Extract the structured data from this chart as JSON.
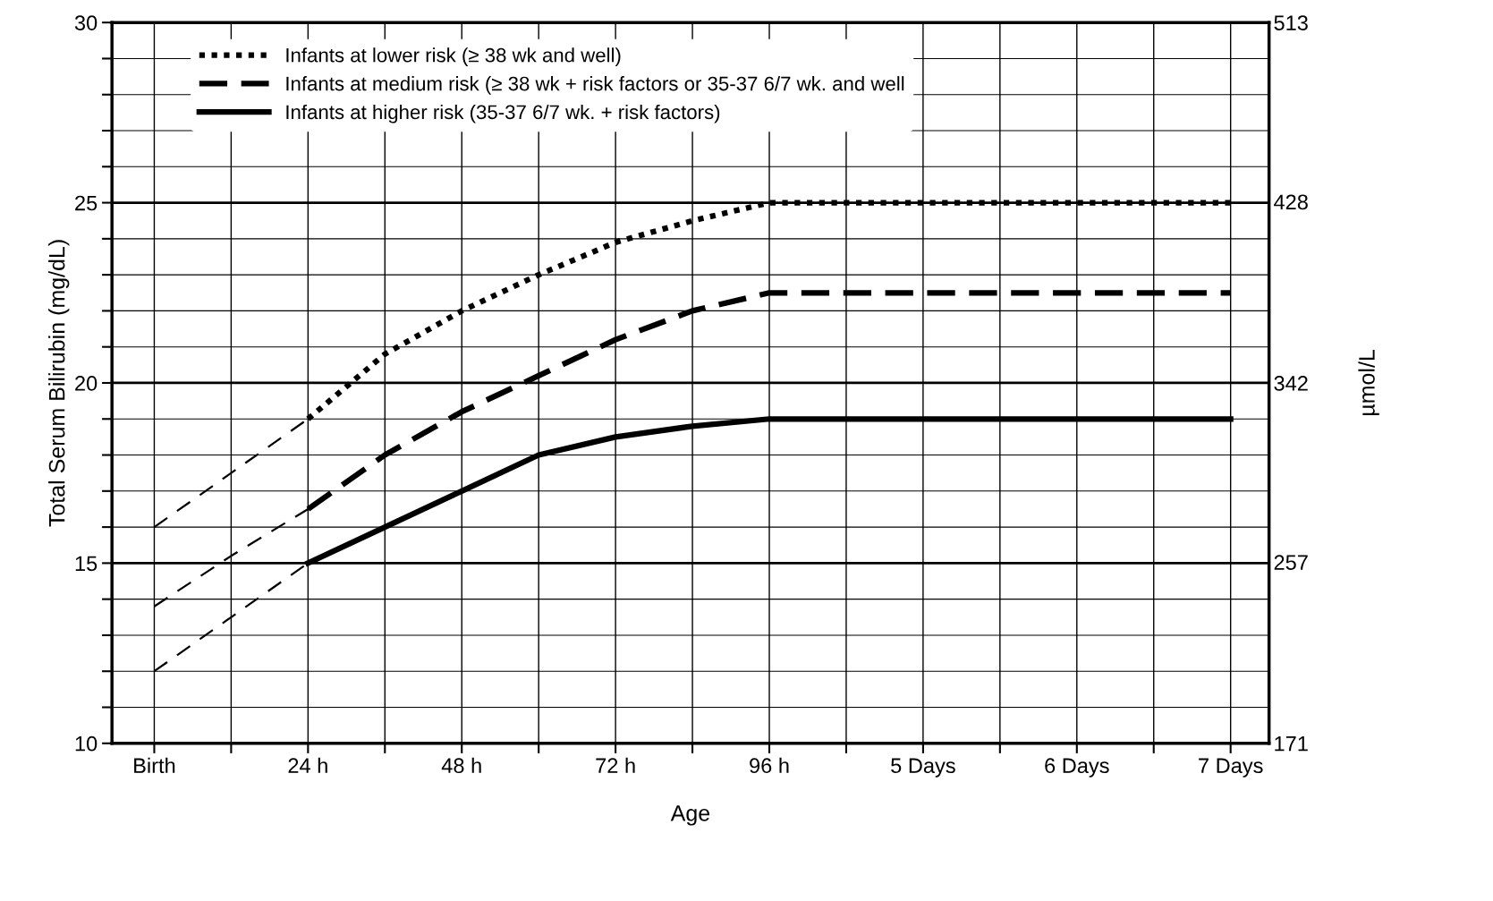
{
  "chart_data": {
    "type": "line",
    "xlabel": "Age",
    "ylabel": "Total Serum Bilirubin (mg/dL)",
    "y2label": "µmol/L",
    "categories": [
      "Birth",
      null,
      "24 h",
      null,
      "48 h",
      null,
      "72 h",
      null,
      "96 h",
      null,
      "5 Days",
      null,
      "6 Days",
      null,
      "7 Days"
    ],
    "ylim": [
      10,
      30
    ],
    "yticks": [
      10,
      {
        "value": 11,
        "label": null
      },
      {
        "value": 12,
        "label": null
      },
      {
        "value": 13,
        "label": null
      },
      {
        "value": 14,
        "label": null
      },
      15,
      {
        "value": 16,
        "label": null
      },
      {
        "value": 17,
        "label": null
      },
      {
        "value": 18,
        "label": null
      },
      {
        "value": 19,
        "label": null
      },
      20,
      {
        "value": 21,
        "label": null
      },
      {
        "value": 22,
        "label": null
      },
      {
        "value": 23,
        "label": null
      },
      {
        "value": 24,
        "label": null
      },
      25,
      {
        "value": 26,
        "label": null
      },
      {
        "value": 27,
        "label": null
      },
      {
        "value": 28,
        "label": null
      },
      {
        "value": 29,
        "label": null
      },
      30
    ],
    "y2lim": [
      171,
      513
    ],
    "y2ticks": [
      171,
      257,
      342,
      428,
      513
    ],
    "grid": true,
    "legend": "top left",
    "marker": "none",
    "series": [
      {
        "name": "Infants at lower risk (≥ 38 wk and well)",
        "color": "#000000",
        "line_style": "dotted",
        "values": [
          null,
          null,
          19,
          20.8,
          22,
          23,
          23.9,
          24.5,
          25,
          25,
          25,
          25,
          25,
          25,
          25
        ]
      },
      {
        "name": "Infants at medium risk (≥ 38 wk + risk factors or 35-37 6/7 wk. and well",
        "color": "#000000",
        "line_style": "dashed",
        "values": [
          null,
          null,
          16.5,
          18,
          19.2,
          20.2,
          21.2,
          22,
          22.5,
          22.5,
          22.5,
          22.5,
          22.5,
          22.5,
          22.5
        ]
      },
      {
        "name": "Infants at higher risk (35-37 6/7 wk. + risk factors)",
        "color": "#000000",
        "line_style": "solid",
        "values": [
          null,
          null,
          15,
          16,
          17,
          18,
          18.5,
          18.8,
          19,
          19,
          19,
          19,
          19,
          19,
          19
        ]
      },
      {
        "color": "#000000",
        "line_style": "dashed",
        "values": [
          16,
          17.5,
          19,
          null,
          null,
          null,
          null,
          null,
          null,
          null,
          null,
          null,
          null,
          null,
          null
        ]
      },
      {
        "color": "#000000",
        "line_style": "dashed",
        "values": [
          13.8,
          15.2,
          16.5,
          null,
          null,
          null,
          null,
          null,
          null,
          null,
          null,
          null,
          null,
          null,
          null
        ]
      },
      {
        "color": "#000000",
        "line_style": "dashed",
        "values": [
          12,
          13.5,
          15,
          null,
          null,
          null,
          null,
          null,
          null,
          null,
          null,
          null,
          null,
          null,
          null
        ]
      }
    ]
  }
}
